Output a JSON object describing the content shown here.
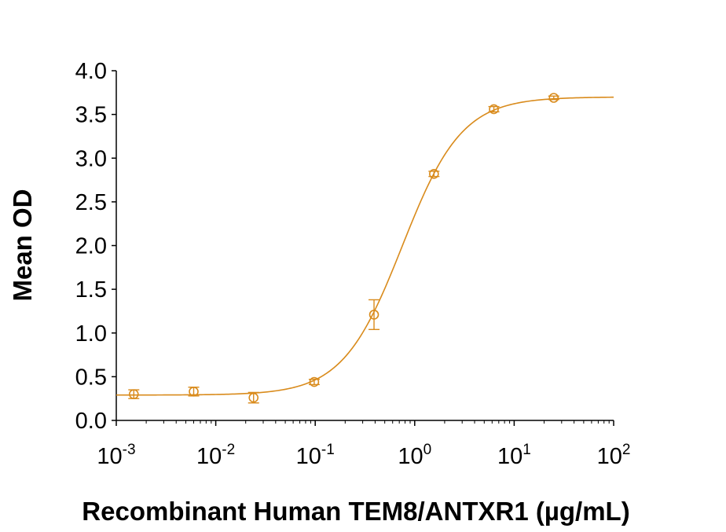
{
  "chart_data": {
    "type": "scatter",
    "title": "",
    "xlabel": "Recombinant Human TEM8/ANTXR1 (µg/mL)",
    "ylabel": "Mean OD",
    "x_scale": "log",
    "xlim": [
      0.001,
      100
    ],
    "ylim": [
      0.0,
      4.0
    ],
    "grid": false,
    "legend": "none",
    "color": "#D98B1C",
    "x_ticks": [
      {
        "value": 0.001,
        "base": "10",
        "exp": "-3"
      },
      {
        "value": 0.01,
        "base": "10",
        "exp": "-2"
      },
      {
        "value": 0.1,
        "base": "10",
        "exp": "-1"
      },
      {
        "value": 1,
        "base": "10",
        "exp": "0"
      },
      {
        "value": 10,
        "base": "10",
        "exp": "1"
      },
      {
        "value": 100,
        "base": "10",
        "exp": "2"
      }
    ],
    "y_ticks": [
      "0.0",
      "0.5",
      "1.0",
      "1.5",
      "2.0",
      "2.5",
      "3.0",
      "3.5",
      "4.0"
    ],
    "series": [
      {
        "x": [
          0.0015,
          0.006,
          0.024,
          0.0977,
          0.39,
          1.5625,
          6.25,
          25
        ],
        "y": [
          0.3,
          0.33,
          0.26,
          0.44,
          1.21,
          2.82,
          3.56,
          3.69
        ],
        "error": [
          0.05,
          0.05,
          0.06,
          0.03,
          0.17,
          0.03,
          0.03,
          0.02
        ]
      }
    ],
    "fit_curve": {
      "model": "4PL",
      "bottom": 0.29,
      "top": 3.7,
      "ec50": 0.75,
      "hill": 1.45
    }
  }
}
